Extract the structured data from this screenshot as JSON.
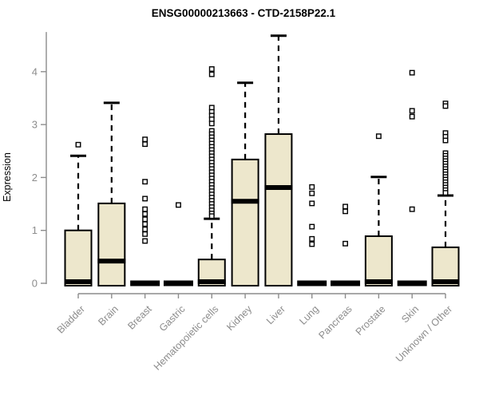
{
  "page": {
    "background": "#ffffff"
  },
  "chart_data": {
    "type": "boxplot",
    "title": "ENSG00000213663 - CTD-2158P22.1",
    "ylabel": "Expression",
    "xlabel": "",
    "yticks": [
      0,
      1,
      2,
      3,
      4
    ],
    "ylim": [
      0,
      4.75
    ],
    "grid": false,
    "legend": null,
    "colors": {
      "box_fill": "#EDE7CC",
      "box_border": "#000000",
      "median": "#000000",
      "whisker": "#000000",
      "outlier_stroke": "#000000",
      "outlier_fill": "#ffffff",
      "axis": "#8C8C8C",
      "tick_label": "#8C8C8C",
      "title": "#000000"
    },
    "categories": [
      {
        "label": "Bladder",
        "q1": 0,
        "median": 0.03,
        "q3": 1.0,
        "whisker_low": 0,
        "whisker_high": 2.41,
        "outliers": [
          2.62
        ]
      },
      {
        "label": "Brain",
        "q1": 0,
        "median": 0.42,
        "q3": 1.51,
        "whisker_low": 0,
        "whisker_high": 3.41,
        "outliers": []
      },
      {
        "label": "Breast",
        "q1": 0,
        "median": 0.0,
        "q3": 0.0,
        "whisker_low": 0,
        "whisker_high": 0.0,
        "outliers": [
          2.72,
          2.63,
          1.92,
          1.6,
          1.4,
          1.31,
          1.21,
          1.12,
          1.02,
          0.93,
          0.8
        ]
      },
      {
        "label": "Gastric",
        "q1": 0,
        "median": 0.0,
        "q3": 0.0,
        "whisker_low": 0,
        "whisker_high": 0.0,
        "outliers": [
          1.48
        ]
      },
      {
        "label": "Hematopoietic cells",
        "q1": 0,
        "median": 0.03,
        "q3": 0.45,
        "whisker_low": 0,
        "whisker_high": 1.22,
        "outliers": [
          4.05,
          3.95,
          3.32,
          3.24,
          3.17,
          3.1,
          3.02,
          2.88,
          2.82,
          2.76,
          2.7,
          2.64,
          2.58,
          2.52,
          2.46,
          2.4,
          2.34,
          2.28,
          2.22,
          2.16,
          2.1,
          2.04,
          1.98,
          1.92,
          1.86,
          1.8,
          1.74,
          1.68,
          1.62,
          1.56,
          1.5,
          1.44,
          1.38,
          1.32,
          1.27
        ]
      },
      {
        "label": "Kidney",
        "q1": 0,
        "median": 1.55,
        "q3": 2.34,
        "whisker_low": 0,
        "whisker_high": 3.79,
        "outliers": []
      },
      {
        "label": "Liver",
        "q1": 0,
        "median": 1.81,
        "q3": 2.82,
        "whisker_low": 0,
        "whisker_high": 4.68,
        "outliers": []
      },
      {
        "label": "Lung",
        "q1": 0,
        "median": 0.0,
        "q3": 0.0,
        "whisker_low": 0,
        "whisker_high": 0.0,
        "outliers": [
          1.82,
          1.7,
          1.51,
          1.07,
          0.84,
          0.74
        ]
      },
      {
        "label": "Pancreas",
        "q1": 0,
        "median": 0.0,
        "q3": 0.0,
        "whisker_low": 0,
        "whisker_high": 0.0,
        "outliers": [
          1.45,
          1.36,
          0.75
        ]
      },
      {
        "label": "Prostate",
        "q1": 0,
        "median": 0.03,
        "q3": 0.89,
        "whisker_low": 0,
        "whisker_high": 2.01,
        "outliers": [
          2.78
        ]
      },
      {
        "label": "Skin",
        "q1": 0,
        "median": 0.0,
        "q3": 0.0,
        "whisker_low": 0,
        "whisker_high": 0.0,
        "outliers": [
          3.98,
          3.26,
          3.15,
          1.4
        ]
      },
      {
        "label": "Unknown / Other",
        "q1": 0,
        "median": 0.03,
        "q3": 0.68,
        "whisker_low": 0,
        "whisker_high": 1.66,
        "outliers": [
          3.4,
          3.35,
          2.84,
          2.77,
          2.7,
          2.46,
          2.41,
          2.36,
          2.31,
          2.26,
          2.21,
          2.16,
          2.11,
          2.06,
          2.01,
          1.96,
          1.91,
          1.86,
          1.81,
          1.76,
          1.71
        ]
      }
    ]
  }
}
